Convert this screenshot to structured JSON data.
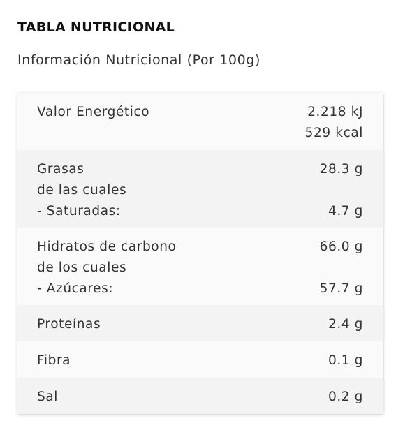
{
  "header": {
    "title": "TABLA NUTRICIONAL",
    "subtitle": "Información Nutricional (Por 100g)"
  },
  "table": {
    "rows": [
      {
        "label_lines": [
          "Valor Energético"
        ],
        "value_lines": [
          "2.218 kJ",
          "529 kcal"
        ]
      },
      {
        "label_lines": [
          "Grasas",
          "de las cuales",
          "- Saturadas:"
        ],
        "value_lines": [
          "28.3 g",
          "",
          "4.7 g"
        ]
      },
      {
        "label_lines": [
          "Hidratos de carbono",
          "de los cuales",
          "- Azúcares:"
        ],
        "value_lines": [
          "66.0 g",
          "",
          "57.7 g"
        ]
      },
      {
        "label_lines": [
          "Proteínas"
        ],
        "value_lines": [
          "2.4 g"
        ]
      },
      {
        "label_lines": [
          "Fibra"
        ],
        "value_lines": [
          "0.1 g"
        ]
      },
      {
        "label_lines": [
          "Sal"
        ],
        "value_lines": [
          "0.2 g"
        ]
      }
    ]
  },
  "colors": {
    "row_light": "#fafafa",
    "row_dark": "#f3f3f3",
    "text": "#333333"
  }
}
